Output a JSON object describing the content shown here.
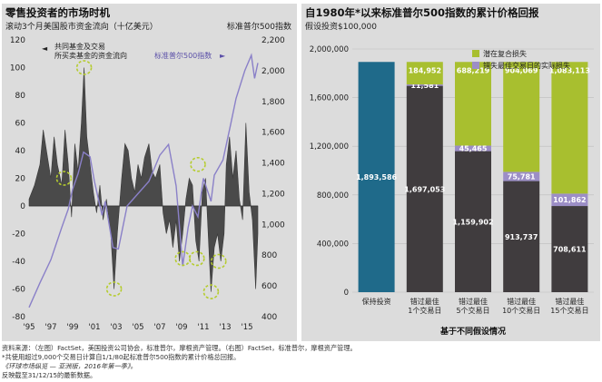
{
  "left_chart": {
    "title": "零售投资者的市场时机",
    "subtitle": "滚动3个月美国股市资金流向（十亿美元）",
    "right_axis_label": "标准普尔500指数",
    "legend_flows": "共同基金及交易所买卖基金的资金流向",
    "legend_index": "标准普尔500指数"
  },
  "right_chart": {
    "title": "自1980年*以来标准普尔500指数的累计价格回报",
    "subtitle": "假设投资$100,000",
    "xlabel": "基于不同假设情况"
  },
  "footnotes": [
    "资料来源：（左图）FactSet，美国投资公司协会，标准普尔，摩根资产管理。（右图）FactSet，标准普尔，摩根资产管理。",
    "*共使用超过9,000个交易日计算自1/1/80起标准普尔500指数的累计价格总回报。",
    "《环球市场纵览 — 亚洲版，2016年第一季》。",
    "反映截至31/12/15的最新数据。"
  ],
  "chart_data": [
    {
      "type": "area",
      "title": "零售投资者的市场时机",
      "x_ticks": [
        "'95",
        "'97",
        "'99",
        "'01",
        "'03",
        "'05",
        "'07",
        "'09",
        "'11",
        "'13",
        "'15"
      ],
      "y_left_ticks": [
        -80,
        -60,
        -40,
        -20,
        0,
        20,
        40,
        60,
        80,
        100,
        120
      ],
      "ylim_left": [
        -80,
        120
      ],
      "y_right_ticks": [
        400,
        600,
        800,
        1000,
        1200,
        1400,
        1600,
        1800,
        2000,
        2200
      ],
      "ylim_right": [
        400,
        2200
      ],
      "x_range": [
        1995,
        2016
      ],
      "flows_points": [
        [
          1995,
          5
        ],
        [
          1995.5,
          15
        ],
        [
          1996,
          30
        ],
        [
          1996.3,
          55
        ],
        [
          1996.6,
          40
        ],
        [
          1997,
          20
        ],
        [
          1997.3,
          50
        ],
        [
          1997.6,
          30
        ],
        [
          1998,
          15
        ],
        [
          1998.3,
          55
        ],
        [
          1998.6,
          30
        ],
        [
          1998.9,
          -8
        ],
        [
          1999.2,
          45
        ],
        [
          1999.5,
          25
        ],
        [
          1999.8,
          60
        ],
        [
          2000.05,
          100
        ],
        [
          2000.3,
          50
        ],
        [
          2000.6,
          30
        ],
        [
          2000.9,
          10
        ],
        [
          2001.2,
          -5
        ],
        [
          2001.5,
          15
        ],
        [
          2001.8,
          -10
        ],
        [
          2002.1,
          5
        ],
        [
          2002.5,
          -20
        ],
        [
          2002.8,
          -60
        ],
        [
          2003.1,
          -20
        ],
        [
          2003.5,
          20
        ],
        [
          2003.8,
          45
        ],
        [
          2004.1,
          40
        ],
        [
          2004.4,
          20
        ],
        [
          2004.7,
          10
        ],
        [
          2005,
          30
        ],
        [
          2005.3,
          20
        ],
        [
          2005.6,
          35
        ],
        [
          2006,
          45
        ],
        [
          2006.3,
          25
        ],
        [
          2006.6,
          20
        ],
        [
          2007,
          30
        ],
        [
          2007.3,
          -5
        ],
        [
          2007.6,
          -20
        ],
        [
          2007.9,
          -10
        ],
        [
          2008.2,
          -30
        ],
        [
          2008.5,
          -10
        ],
        [
          2008.8,
          -40
        ],
        [
          2009.1,
          -20
        ],
        [
          2009.4,
          5
        ],
        [
          2009.7,
          20
        ],
        [
          2010,
          15
        ],
        [
          2010.3,
          -25
        ],
        [
          2010.6,
          -40
        ],
        [
          2010.9,
          10
        ],
        [
          2011.2,
          20
        ],
        [
          2011.5,
          -30
        ],
        [
          2011.7,
          -62
        ],
        [
          2012,
          -30
        ],
        [
          2012.3,
          -20
        ],
        [
          2012.6,
          -40
        ],
        [
          2012.9,
          -20
        ],
        [
          2013.1,
          30
        ],
        [
          2013.4,
          50
        ],
        [
          2013.7,
          20
        ],
        [
          2014,
          40
        ],
        [
          2014.3,
          5
        ],
        [
          2014.6,
          -10
        ],
        [
          2014.9,
          60
        ],
        [
          2015.2,
          10
        ],
        [
          2015.5,
          -10
        ],
        [
          2015.8,
          -60
        ],
        [
          2016,
          -20
        ]
      ],
      "sp500_points": [
        [
          1995,
          460
        ],
        [
          1996,
          620
        ],
        [
          1997,
          770
        ],
        [
          1998,
          980
        ],
        [
          1998.6,
          1100
        ],
        [
          1999,
          1230
        ],
        [
          1999.5,
          1330
        ],
        [
          2000,
          1470
        ],
        [
          2000.6,
          1440
        ],
        [
          2001,
          1280
        ],
        [
          2001.7,
          1060
        ],
        [
          2002,
          1150
        ],
        [
          2002.7,
          850
        ],
        [
          2003.2,
          840
        ],
        [
          2004,
          1120
        ],
        [
          2005,
          1200
        ],
        [
          2006,
          1280
        ],
        [
          2007,
          1450
        ],
        [
          2007.8,
          1520
        ],
        [
          2008.5,
          1250
        ],
        [
          2009.1,
          730
        ],
        [
          2009.6,
          980
        ],
        [
          2010,
          1120
        ],
        [
          2010.5,
          1050
        ],
        [
          2011,
          1300
        ],
        [
          2011.7,
          1150
        ],
        [
          2012,
          1320
        ],
        [
          2012.8,
          1420
        ],
        [
          2013.5,
          1650
        ],
        [
          2014,
          1820
        ],
        [
          2014.8,
          2000
        ],
        [
          2015.4,
          2100
        ],
        [
          2015.7,
          1950
        ],
        [
          2016,
          2050
        ]
      ],
      "circled_points": [
        [
          1998.2,
          20
        ],
        [
          2000.05,
          100
        ],
        [
          2002.8,
          -60
        ],
        [
          2009.1,
          -38
        ],
        [
          2010.4,
          -38
        ],
        [
          2010.5,
          30
        ],
        [
          2011.7,
          -62
        ],
        [
          2012.4,
          -40
        ]
      ]
    },
    {
      "type": "bar",
      "title": "自1980年*以来标准普尔500指数的累计价格回报",
      "categories": [
        "保持投资",
        "错过最佳\n1个交易日",
        "错过最佳\n5个交易日",
        "错过最佳\n10个交易日",
        "错过最佳\n15个交易日"
      ],
      "ylim": [
        0,
        2000000
      ],
      "y_ticks": [
        0,
        400000,
        800000,
        1200000,
        1600000,
        2000000
      ],
      "y_tick_labels": [
        "0",
        "400,000",
        "800,000",
        "1,200,000",
        "1,600,000",
        "2,000,000"
      ],
      "stacked": true,
      "series": [
        {
          "name": "",
          "values": [
            1893586,
            0,
            0,
            0,
            0
          ],
          "labels": [
            "1,893,586",
            "",
            "",
            "",
            ""
          ],
          "color": "#1f6a8a"
        },
        {
          "name": "",
          "values": [
            0,
            1697053,
            1159902,
            913737,
            708611
          ],
          "labels": [
            "",
            "1,697,053",
            "1,159,902",
            "913,737",
            "708,611"
          ],
          "color": "#403c3e"
        },
        {
          "name": "错失最佳交易日的实际损失",
          "values": [
            0,
            11581,
            45465,
            75781,
            101862
          ],
          "labels": [
            "",
            "11,581",
            "45,465",
            "75,781",
            "101,862"
          ],
          "color": "#9c8ec6"
        },
        {
          "name": "潜在复合损失",
          "values": [
            0,
            184952,
            688219,
            904069,
            1083113
          ],
          "labels": [
            "",
            "184,952",
            "688,219",
            "904,069",
            "1,083,113"
          ],
          "color": "#a8bf2f"
        }
      ],
      "legend_position": "top-right"
    }
  ]
}
